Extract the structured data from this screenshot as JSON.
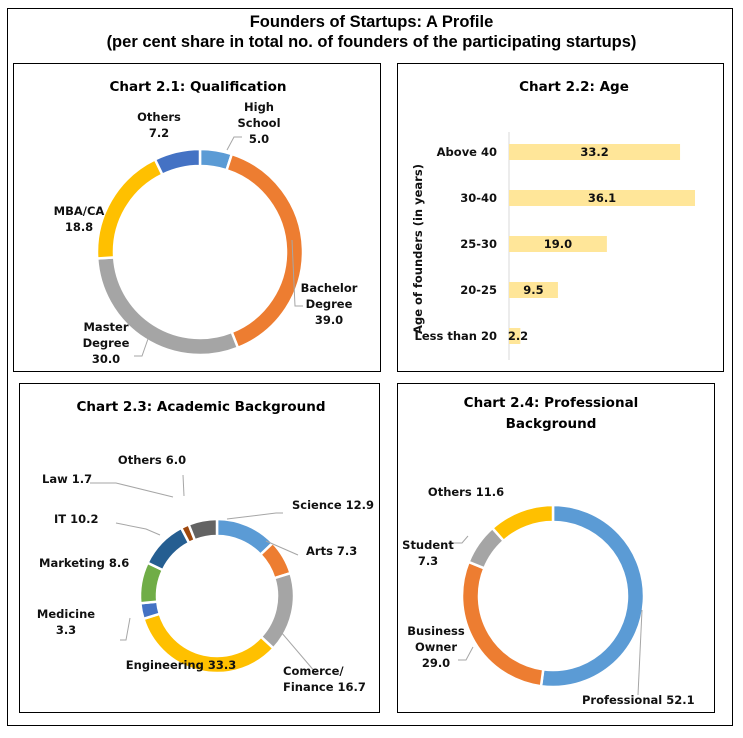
{
  "title": "Founders of Startups: A Profile",
  "subtitle": "(per cent share in total no. of founders of the participating startups)",
  "chart_data": [
    {
      "id": "qualification",
      "type": "pie",
      "variant": "donut",
      "title": "Chart 2.1: Qualification",
      "slices": [
        {
          "label": "High School",
          "label_lines": [
            "High",
            "School",
            "5.0"
          ],
          "value": 5.0,
          "color": "#5b9bd5"
        },
        {
          "label": "Bachelor Degree",
          "label_lines": [
            "Bachelor",
            "Degree",
            "39.0"
          ],
          "value": 39.0,
          "color": "#ed7d31"
        },
        {
          "label": "Master Degree",
          "label_lines": [
            "Master",
            "Degree",
            "30.0"
          ],
          "value": 30.0,
          "color": "#a5a5a5"
        },
        {
          "label": "MBA/CA",
          "label_lines": [
            "MBA/CA",
            "18.8"
          ],
          "value": 18.8,
          "color": "#ffc000"
        },
        {
          "label": "Others",
          "label_lines": [
            "Others",
            "7.2"
          ],
          "value": 7.2,
          "color": "#4472c4"
        }
      ]
    },
    {
      "id": "age",
      "type": "bar",
      "orientation": "horizontal",
      "title": "Chart 2.2: Age",
      "ylabel": "Age of founders (in years)",
      "xlabel": "",
      "categories": [
        "Above 40",
        "30-40",
        "25-30",
        "20-25",
        "Less than 20"
      ],
      "values": [
        33.2,
        36.1,
        19.0,
        9.5,
        2.2
      ],
      "value_labels": [
        "33.2",
        "36.1",
        "19.0",
        "9.5",
        "2.2"
      ],
      "bar_color": "#ffe699",
      "xlim": [
        0,
        36.1
      ],
      "grid": false
    },
    {
      "id": "academic",
      "type": "pie",
      "variant": "donut",
      "title": "Chart 2.3: Academic Background",
      "slices": [
        {
          "label": "Science",
          "label_lines": [
            "Science 12.9"
          ],
          "value": 12.9,
          "color": "#5b9bd5"
        },
        {
          "label": "Arts",
          "label_lines": [
            "Arts 7.3"
          ],
          "value": 7.3,
          "color": "#ed7d31"
        },
        {
          "label": "Comerce/Finance",
          "label_lines": [
            "Comerce/",
            "Finance 16.7"
          ],
          "value": 16.7,
          "color": "#a5a5a5"
        },
        {
          "label": "Engineering",
          "label_lines": [
            "Engineering 33.3"
          ],
          "value": 33.3,
          "color": "#ffc000"
        },
        {
          "label": "Medicine",
          "label_lines": [
            "Medicine",
            "3.3"
          ],
          "value": 3.3,
          "color": "#4472c4"
        },
        {
          "label": "Marketing",
          "label_lines": [
            "Marketing 8.6"
          ],
          "value": 8.6,
          "color": "#70ad47"
        },
        {
          "label": "IT",
          "label_lines": [
            "IT 10.2"
          ],
          "value": 10.2,
          "color": "#255e91"
        },
        {
          "label": "Law",
          "label_lines": [
            "Law 1.7"
          ],
          "value": 1.7,
          "color": "#9e480e"
        },
        {
          "label": "Others",
          "label_lines": [
            "Others 6.0"
          ],
          "value": 6.0,
          "color": "#636363"
        }
      ]
    },
    {
      "id": "professional",
      "type": "pie",
      "variant": "donut",
      "title": "Chart 2.4: Professional Background",
      "title_lines": [
        "Chart 2.4: Professional",
        "Background"
      ],
      "slices": [
        {
          "label": "Professional",
          "label_lines": [
            "Professional 52.1"
          ],
          "value": 52.1,
          "color": "#5b9bd5"
        },
        {
          "label": "Business Owner",
          "label_lines": [
            "Business",
            "Owner",
            "29.0"
          ],
          "value": 29.0,
          "color": "#ed7d31"
        },
        {
          "label": "Student",
          "label_lines": [
            "Student",
            "7.3"
          ],
          "value": 7.3,
          "color": "#a5a5a5"
        },
        {
          "label": "Others",
          "label_lines": [
            "Others 11.6"
          ],
          "value": 11.6,
          "color": "#ffc000"
        }
      ]
    }
  ]
}
